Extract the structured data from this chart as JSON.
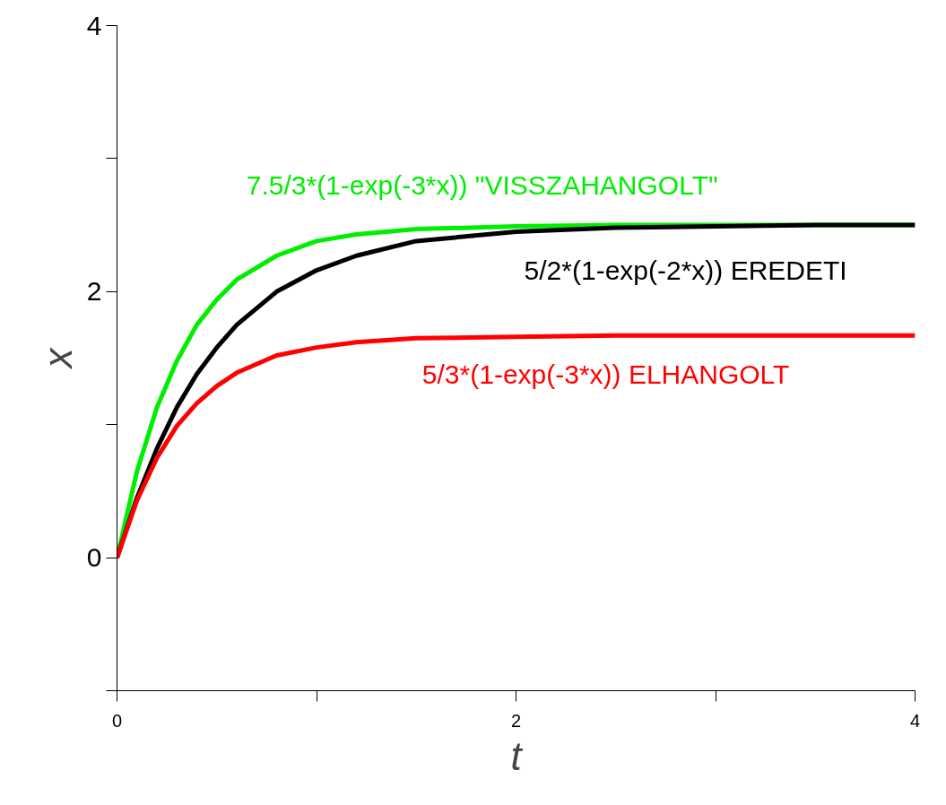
{
  "chart_data": {
    "type": "line",
    "xlabel": "t",
    "ylabel": "x",
    "x": [
      0,
      0.1,
      0.2,
      0.3,
      0.4,
      0.5,
      0.6,
      0.8,
      1.0,
      1.2,
      1.5,
      2,
      2.5,
      3,
      3.5,
      4
    ],
    "series": [
      {
        "name": "7.5/3*(1-exp(-3*x)) \"VISSZAHANGOLT\"",
        "color": "#00ee00",
        "values": [
          0,
          0.65,
          1.13,
          1.48,
          1.75,
          1.94,
          2.09,
          2.27,
          2.38,
          2.43,
          2.47,
          2.49,
          2.5,
          2.5,
          2.5,
          2.5
        ]
      },
      {
        "name": "5/2*(1-exp(-2*x)) EREDETI",
        "color": "#000000",
        "values": [
          0,
          0.45,
          0.82,
          1.13,
          1.38,
          1.58,
          1.75,
          2.0,
          2.16,
          2.27,
          2.38,
          2.45,
          2.48,
          2.49,
          2.5,
          2.5
        ]
      },
      {
        "name": "5/3*(1-exp(-3*x)) ELHANGOLT",
        "color": "#ff0000",
        "values": [
          0,
          0.43,
          0.75,
          0.99,
          1.16,
          1.29,
          1.39,
          1.52,
          1.58,
          1.62,
          1.65,
          1.66,
          1.67,
          1.67,
          1.67,
          1.67
        ]
      }
    ],
    "xlim": [
      0,
      4
    ],
    "ylim": [
      -1,
      4
    ],
    "xticks": [
      0,
      {
        "value": 1,
        "label": null
      },
      2,
      {
        "value": 3,
        "label": null
      },
      4
    ],
    "yticks": [
      {
        "value": -1,
        "label": null
      },
      0,
      {
        "value": 1,
        "label": null
      },
      2,
      {
        "value": 3,
        "label": null
      },
      4
    ],
    "grid": false,
    "marker": "none",
    "line_style": "solid"
  }
}
